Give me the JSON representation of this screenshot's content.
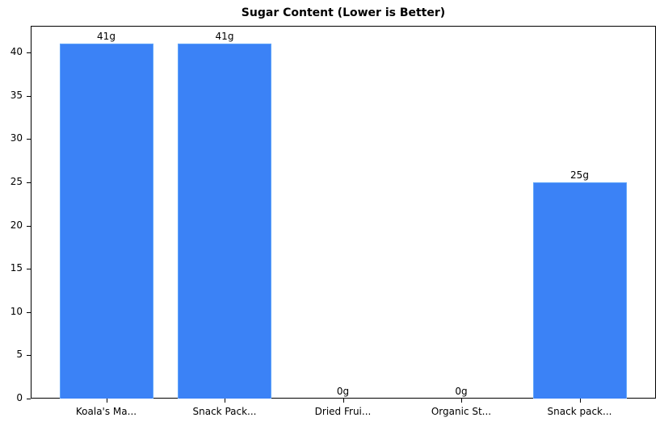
{
  "chart_data": {
    "type": "bar",
    "title": "Sugar Content (Lower is Better)",
    "xlabel": "",
    "ylabel": "",
    "categories": [
      "Koala's Ma...",
      "Snack Pack...",
      "Dried Frui...",
      "Organic St...",
      "Snack pack..."
    ],
    "values": [
      41,
      41,
      0,
      0,
      25
    ],
    "value_labels": [
      "41g",
      "41g",
      "0g",
      "0g",
      "25g"
    ],
    "ylim": [
      0,
      43
    ],
    "yticks": [
      0,
      5,
      10,
      15,
      20,
      25,
      30,
      35,
      40
    ],
    "grid": false,
    "legend": null,
    "bar_color": "#3b82f6",
    "bar_edge_color": "#60a5fa"
  }
}
